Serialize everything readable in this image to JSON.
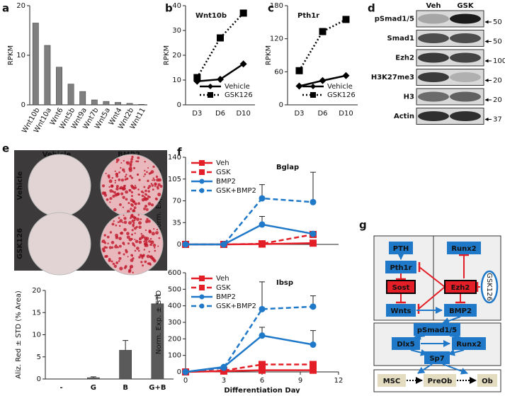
{
  "chart_data": [
    {
      "type": "bar",
      "panel_label": "a",
      "ylabel": "RPKM",
      "categories": [
        "Wnt10b",
        "Wnt10a",
        "Wnt6",
        "Wnt5b",
        "Wnt9a",
        "Wnt7b",
        "Wnt5a",
        "Wnt4",
        "Wnt2b",
        "Wnt11"
      ],
      "values": [
        16.5,
        12,
        7.6,
        4.2,
        2.7,
        1,
        0.7,
        0.5,
        0.3,
        0.1
      ],
      "color": "#7f7f7f",
      "ylim": [
        0,
        20
      ],
      "yticks": [
        0,
        10,
        20
      ]
    },
    {
      "type": "line",
      "panel_label": "b",
      "title": "Wnt10b",
      "ylabel": "RPKM",
      "categories": [
        "D3",
        "D6",
        "D10"
      ],
      "ylim": [
        0,
        40
      ],
      "yticks": [
        0,
        10,
        20,
        30,
        40
      ],
      "legend": "lower right",
      "series": [
        {
          "name": "Vehicle",
          "color": "#000000",
          "linestyle": "solid",
          "marker": "diamond",
          "values": [
            9.5,
            10.3,
            16.5
          ]
        },
        {
          "name": "GSK126",
          "color": "#000000",
          "linestyle": "dotted",
          "marker": "square",
          "values": [
            11,
            27,
            37
          ]
        }
      ]
    },
    {
      "type": "line",
      "panel_label": "c",
      "title": "Pth1r",
      "ylabel": "RPKM",
      "categories": [
        "D3",
        "D6",
        "D10"
      ],
      "ylim": [
        0,
        180
      ],
      "yticks": [
        0,
        60,
        120,
        180
      ],
      "legend": "lower right",
      "series": [
        {
          "name": "Vehicle",
          "color": "#000000",
          "linestyle": "solid",
          "marker": "diamond",
          "values": [
            34,
            44,
            53
          ]
        },
        {
          "name": "GSK126",
          "color": "#000000",
          "linestyle": "dotted",
          "marker": "square",
          "values": [
            62,
            133,
            155
          ]
        }
      ]
    },
    {
      "type": "bar",
      "ylabel": "Aliz. Red ± STD (% Area)",
      "categories": [
        "-",
        "G",
        "B",
        "G+B"
      ],
      "values": [
        0,
        0.3,
        6.5,
        17
      ],
      "errors": [
        0,
        0.2,
        2.2,
        1.8
      ],
      "color": "#5a5a5a",
      "ylim": [
        0,
        20
      ],
      "yticks": [
        0,
        5,
        10,
        15,
        20
      ]
    },
    {
      "type": "line",
      "panel_label": "f",
      "title": "Bglap",
      "ylabel": "Norm. Exp. ± STD",
      "x": [
        0,
        3,
        6,
        10
      ],
      "xlim": [
        0,
        12
      ],
      "ylim": [
        0,
        140
      ],
      "yticks": [
        0,
        35,
        70,
        105,
        140
      ],
      "legend": "upper left",
      "series": [
        {
          "name": "Veh",
          "color": "#e41e26",
          "linestyle": "solid",
          "marker": "square",
          "values": [
            0,
            0,
            0.5,
            2
          ],
          "errors": [
            0,
            0,
            0.5,
            1
          ]
        },
        {
          "name": "GSK",
          "color": "#e41e26",
          "linestyle": "dashed",
          "marker": "square",
          "values": [
            0,
            0,
            1,
            16
          ],
          "errors": [
            0,
            0,
            1,
            3
          ]
        },
        {
          "name": "BMP2",
          "color": "#1f78c8",
          "linestyle": "solid",
          "marker": "circle",
          "values": [
            0,
            0,
            32,
            17
          ],
          "errors": [
            0,
            0,
            13,
            3
          ]
        },
        {
          "name": "GSK+BMP2",
          "color": "#1f78c8",
          "linestyle": "dashed",
          "marker": "circle",
          "values": [
            0,
            0,
            74,
            68
          ],
          "errors": [
            0,
            0,
            22,
            48
          ]
        }
      ]
    },
    {
      "type": "line",
      "title": "Ibsp",
      "ylabel": "Norm. Exp. ± STD",
      "xlabel": "Differentiation Day",
      "x": [
        0,
        3,
        6,
        10
      ],
      "xlim": [
        0,
        12
      ],
      "xticks": [
        0,
        3,
        6,
        9,
        12
      ],
      "ylim": [
        0,
        600
      ],
      "yticks": [
        0,
        100,
        200,
        300,
        400,
        500,
        600
      ],
      "legend": "upper left",
      "series": [
        {
          "name": "Veh",
          "color": "#e41e26",
          "linestyle": "solid",
          "marker": "square",
          "values": [
            0,
            5,
            10,
            10
          ],
          "errors": [
            0,
            0,
            3,
            3
          ]
        },
        {
          "name": "GSK",
          "color": "#e41e26",
          "linestyle": "dashed",
          "marker": "square",
          "values": [
            0,
            8,
            45,
            45
          ],
          "errors": [
            0,
            0,
            10,
            8
          ]
        },
        {
          "name": "BMP2",
          "color": "#1f78c8",
          "linestyle": "solid",
          "marker": "circle",
          "values": [
            0,
            30,
            220,
            165
          ],
          "errors": [
            0,
            0,
            50,
            85
          ]
        },
        {
          "name": "GSK+BMP2",
          "color": "#1f78c8",
          "linestyle": "dashed",
          "marker": "circle",
          "values": [
            0,
            25,
            380,
            395
          ],
          "errors": [
            0,
            0,
            165,
            65
          ]
        }
      ]
    }
  ],
  "blot": {
    "panel_label": "d",
    "columns": [
      "Veh",
      "GSK"
    ],
    "rows": [
      {
        "label": "pSmad1/5",
        "size": "50"
      },
      {
        "label": "Smad1",
        "size": "50"
      },
      {
        "label": "Ezh2",
        "size": "100"
      },
      {
        "label": "H3K27me3",
        "size": "20"
      },
      {
        "label": "H3",
        "size": "20"
      },
      {
        "label": "Actin",
        "size": "37"
      }
    ]
  },
  "photo": {
    "panel_label": "e",
    "columns": [
      "Vehicle",
      "BMP2"
    ],
    "rows": [
      "Vehicle",
      "GSK126"
    ]
  },
  "diagram": {
    "panel_label": "g",
    "nodes": [
      "PTH",
      "Pth1r",
      "Sost",
      "Wnts",
      "Runx2",
      "Ezh2",
      "GSK126",
      "BMP2",
      "pSmad1/5",
      "Dlx5",
      "Runx2",
      "Sp7",
      "MSC",
      "PreOb",
      "Ob"
    ]
  }
}
